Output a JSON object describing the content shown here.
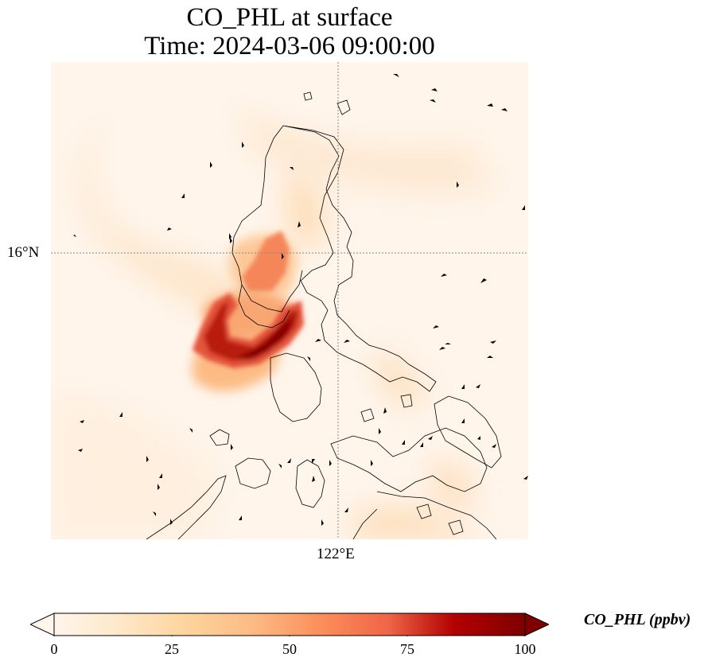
{
  "title": {
    "line1": "CO_PHL at surface",
    "line2": "Time: 2024-03-06 09:00:00"
  },
  "map": {
    "lat_label": "16°N",
    "lon_label": "122°E",
    "gridline_color": "#888888",
    "coastline_color": "#000000"
  },
  "colorbar": {
    "title": "CO_PHL (ppbv)",
    "ticks": [
      "0",
      "25",
      "50",
      "75",
      "100"
    ],
    "min": 0,
    "max": 100,
    "colors": [
      "#fff5eb",
      "#fdd49e",
      "#fdbb84",
      "#fc8d59",
      "#ef6548",
      "#d7301f",
      "#b30000",
      "#7f0000"
    ],
    "extend": "both"
  }
}
